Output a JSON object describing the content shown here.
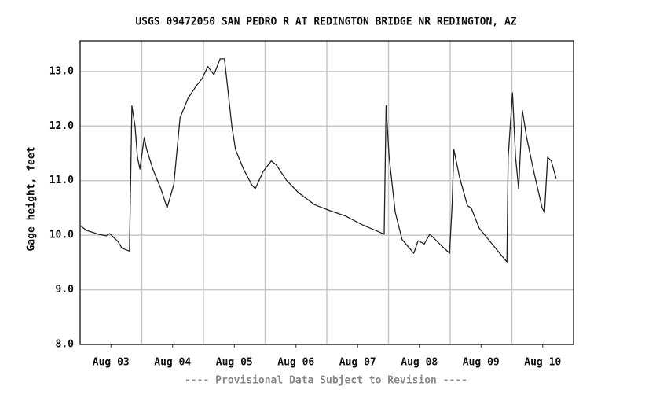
{
  "chart_data": {
    "type": "line",
    "title": "USGS 09472050 SAN PEDRO R AT REDINGTON BRIDGE NR REDINGTON, AZ",
    "y_label": "Gage height, feet",
    "footer": "---- Provisional Data Subject to Revision ----",
    "color": "#222222",
    "x": [
      3.0,
      3.1,
      3.29,
      3.42,
      3.48,
      3.61,
      3.68,
      3.8,
      3.82,
      3.84,
      3.89,
      3.93,
      3.97,
      4.04,
      4.08,
      4.18,
      4.31,
      4.41,
      4.52,
      4.62,
      4.75,
      4.88,
      4.98,
      5.07,
      5.17,
      5.27,
      5.34,
      5.39,
      5.46,
      5.52,
      5.65,
      5.78,
      5.84,
      5.97,
      6.1,
      6.18,
      6.35,
      6.54,
      6.8,
      7.05,
      7.31,
      7.56,
      7.93,
      7.96,
      8.01,
      8.11,
      8.22,
      8.41,
      8.48,
      8.58,
      8.67,
      8.83,
      8.99,
      9.03,
      9.06,
      9.15,
      9.28,
      9.34,
      9.47,
      9.73,
      9.92,
      9.94,
      10.01,
      10.06,
      10.11,
      10.17,
      10.24,
      10.36,
      10.49,
      10.53,
      10.58,
      10.64,
      10.72
    ],
    "values": [
      10.18,
      10.09,
      10.02,
      9.99,
      10.03,
      9.89,
      9.76,
      9.71,
      11.07,
      12.37,
      12.0,
      11.43,
      11.21,
      11.79,
      11.57,
      11.21,
      10.85,
      10.5,
      10.93,
      12.15,
      12.51,
      12.73,
      12.87,
      13.09,
      12.94,
      13.23,
      13.23,
      12.73,
      12.0,
      11.57,
      11.21,
      10.93,
      10.85,
      11.17,
      11.36,
      11.29,
      11.0,
      10.78,
      10.56,
      10.45,
      10.35,
      10.2,
      10.02,
      12.37,
      11.43,
      10.42,
      9.92,
      9.67,
      9.9,
      9.84,
      10.02,
      9.84,
      9.67,
      10.54,
      11.57,
      11.07,
      10.54,
      10.5,
      10.13,
      9.77,
      9.51,
      11.43,
      12.61,
      11.43,
      10.85,
      12.29,
      11.79,
      11.14,
      10.5,
      10.42,
      11.43,
      11.36,
      11.03
    ],
    "xlim": [
      3,
      11
    ],
    "xticks": [
      {
        "value": 3.5,
        "label": "Aug 03"
      },
      {
        "value": 4.5,
        "label": "Aug 04"
      },
      {
        "value": 5.5,
        "label": "Aug 05"
      },
      {
        "value": 6.5,
        "label": "Aug 06"
      },
      {
        "value": 7.5,
        "label": "Aug 07"
      },
      {
        "value": 8.5,
        "label": "Aug 08"
      },
      {
        "value": 9.5,
        "label": "Aug 09"
      },
      {
        "value": 10.5,
        "label": "Aug 10"
      }
    ],
    "xgrid": [
      4,
      5,
      6,
      7,
      8,
      9,
      10
    ],
    "ylim": [
      8,
      13.56
    ],
    "yticks": [
      {
        "value": 8,
        "label": "8.0"
      },
      {
        "value": 9,
        "label": "9.0"
      },
      {
        "value": 10,
        "label": "10.0"
      },
      {
        "value": 11,
        "label": "11.0"
      },
      {
        "value": 12,
        "label": "12.0"
      },
      {
        "value": 13,
        "label": "13.0"
      }
    ],
    "grid": true
  }
}
